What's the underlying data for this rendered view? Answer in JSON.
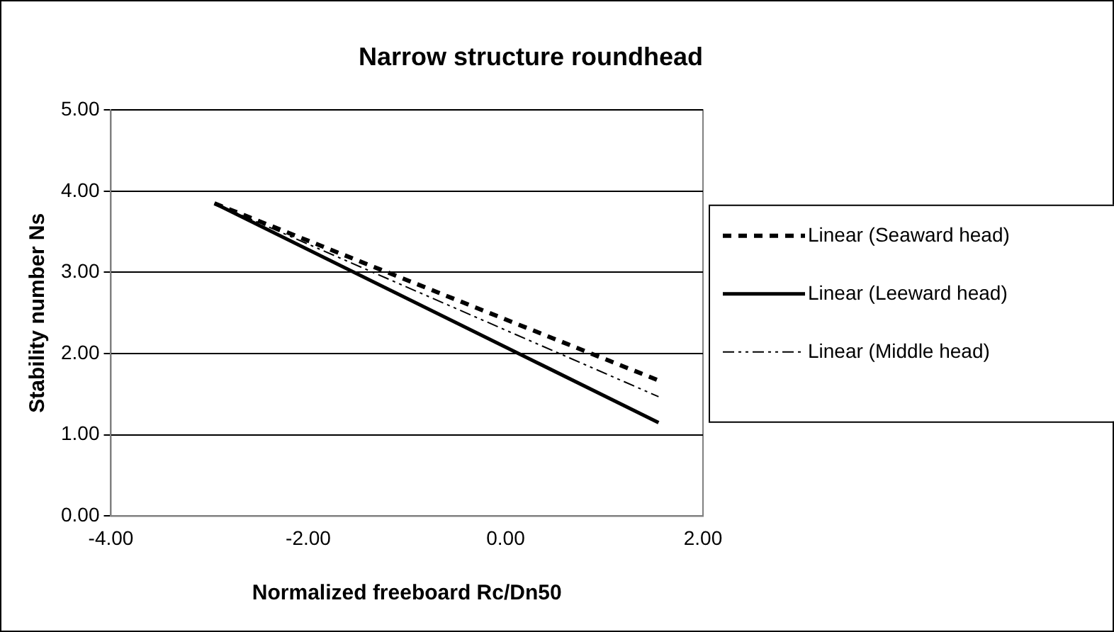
{
  "chart_data": {
    "type": "line",
    "title": "Narrow structure roundhead",
    "xlabel": "Normalized freeboard Rc/Dn50",
    "ylabel": "Stability number Ns",
    "xlim": [
      -4,
      2
    ],
    "xticks": [
      {
        "value": -4,
        "label": "-4.00"
      },
      {
        "value": -2,
        "label": "-2.00"
      },
      {
        "value": 0,
        "label": "0.00"
      },
      {
        "value": 2,
        "label": "2.00"
      }
    ],
    "ylim": [
      0,
      5
    ],
    "yticks": [
      {
        "value": 0,
        "label": "0.00"
      },
      {
        "value": 1,
        "label": "1.00"
      },
      {
        "value": 2,
        "label": "2.00"
      },
      {
        "value": 3,
        "label": "3.00"
      },
      {
        "value": 4,
        "label": "4.00"
      },
      {
        "value": 5,
        "label": "5.00"
      }
    ],
    "grid": "y",
    "legend": "right",
    "marker": "none",
    "x": [
      -2.95,
      1.55
    ],
    "series": [
      {
        "name": "Linear (Seaward head)",
        "color": "#000000",
        "line_style": "dashed",
        "values": [
          3.85,
          1.67
        ]
      },
      {
        "name": "Linear (Leeward head)",
        "color": "#000000",
        "line_style": "solid",
        "values": [
          3.85,
          1.15
        ]
      },
      {
        "name": "Linear (Middle head)",
        "color": "#000000",
        "line_style": "dotted",
        "values": [
          3.85,
          1.47
        ]
      }
    ]
  }
}
